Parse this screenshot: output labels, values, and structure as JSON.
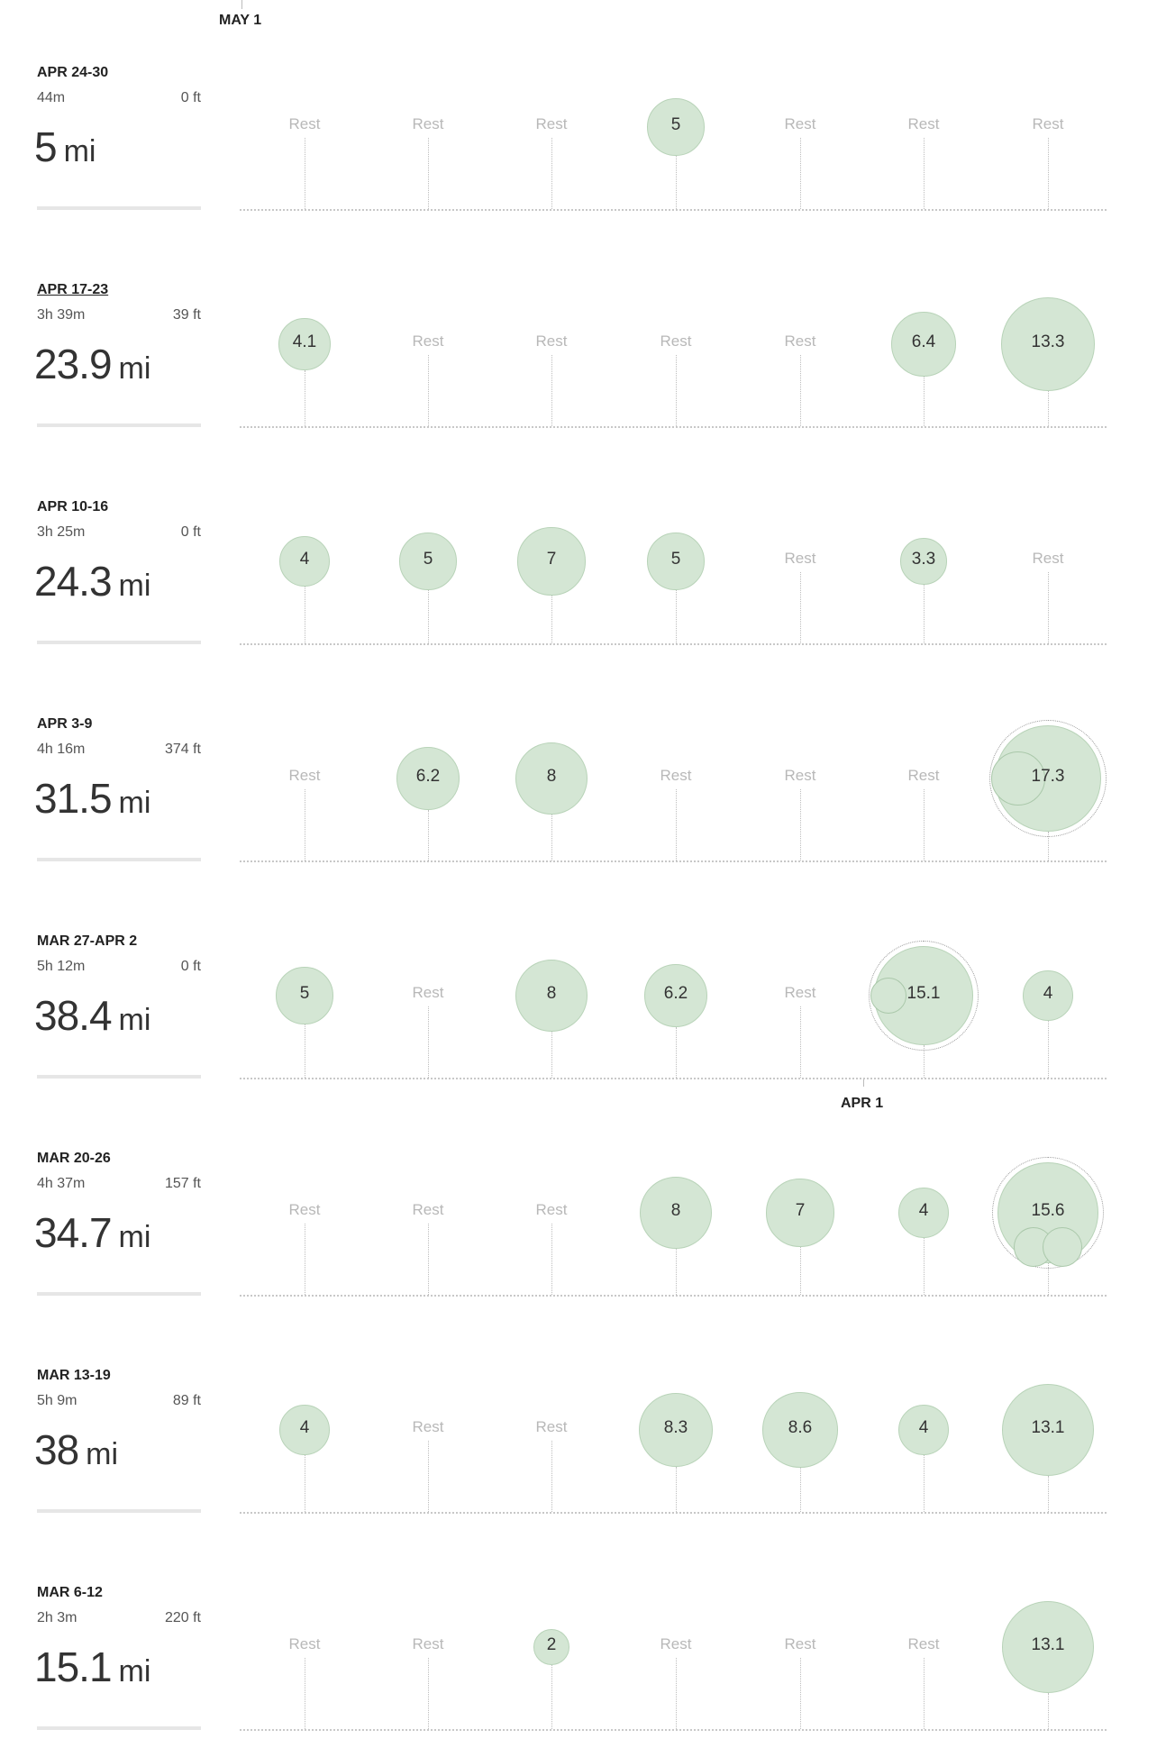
{
  "markers": [
    {
      "label": "MAY 1"
    },
    {
      "label": "APR 1"
    }
  ],
  "rest_label": "Rest",
  "weeks": [
    {
      "range": "APR 24-30",
      "duration": "44m",
      "elevation": "0 ft",
      "distance": "5",
      "unit": "mi",
      "days": [
        null,
        null,
        null,
        {
          "v": "5"
        },
        null,
        null,
        null
      ]
    },
    {
      "range": "APR 17-23",
      "duration": "3h 39m",
      "elevation": "39 ft",
      "distance": "23.9",
      "unit": "mi",
      "link": true,
      "days": [
        {
          "v": "4.1"
        },
        null,
        null,
        null,
        null,
        {
          "v": "6.4"
        },
        {
          "v": "13.3"
        }
      ]
    },
    {
      "range": "APR 10-16",
      "duration": "3h 25m",
      "elevation": "0 ft",
      "distance": "24.3",
      "unit": "mi",
      "days": [
        {
          "v": "4"
        },
        {
          "v": "5"
        },
        {
          "v": "7"
        },
        {
          "v": "5"
        },
        null,
        {
          "v": "3.3"
        },
        null
      ]
    },
    {
      "range": "APR 3-9",
      "duration": "4h 16m",
      "elevation": "374 ft",
      "distance": "31.5",
      "unit": "mi",
      "days": [
        null,
        {
          "v": "6.2"
        },
        {
          "v": "8"
        },
        null,
        null,
        null,
        {
          "v": "17.3",
          "multi": "left"
        }
      ]
    },
    {
      "range": "MAR 27-APR 2",
      "duration": "5h 12m",
      "elevation": "0 ft",
      "distance": "38.4",
      "unit": "mi",
      "days": [
        {
          "v": "5"
        },
        null,
        {
          "v": "8"
        },
        {
          "v": "6.2"
        },
        null,
        {
          "v": "15.1",
          "multi": "left-small"
        },
        {
          "v": "4"
        }
      ]
    },
    {
      "range": "MAR 20-26",
      "duration": "4h 37m",
      "elevation": "157 ft",
      "distance": "34.7",
      "unit": "mi",
      "days": [
        null,
        null,
        null,
        {
          "v": "8"
        },
        {
          "v": "7"
        },
        {
          "v": "4"
        },
        {
          "v": "15.6",
          "multi": "bottom"
        }
      ]
    },
    {
      "range": "MAR 13-19",
      "duration": "5h 9m",
      "elevation": "89 ft",
      "distance": "38",
      "unit": "mi",
      "days": [
        {
          "v": "4"
        },
        null,
        null,
        {
          "v": "8.3"
        },
        {
          "v": "8.6"
        },
        {
          "v": "4"
        },
        {
          "v": "13.1"
        }
      ]
    },
    {
      "range": "MAR 6-12",
      "duration": "2h 3m",
      "elevation": "220 ft",
      "distance": "15.1",
      "unit": "mi",
      "days": [
        null,
        null,
        {
          "v": "2"
        },
        null,
        null,
        null,
        {
          "v": "13.1"
        }
      ]
    }
  ]
}
